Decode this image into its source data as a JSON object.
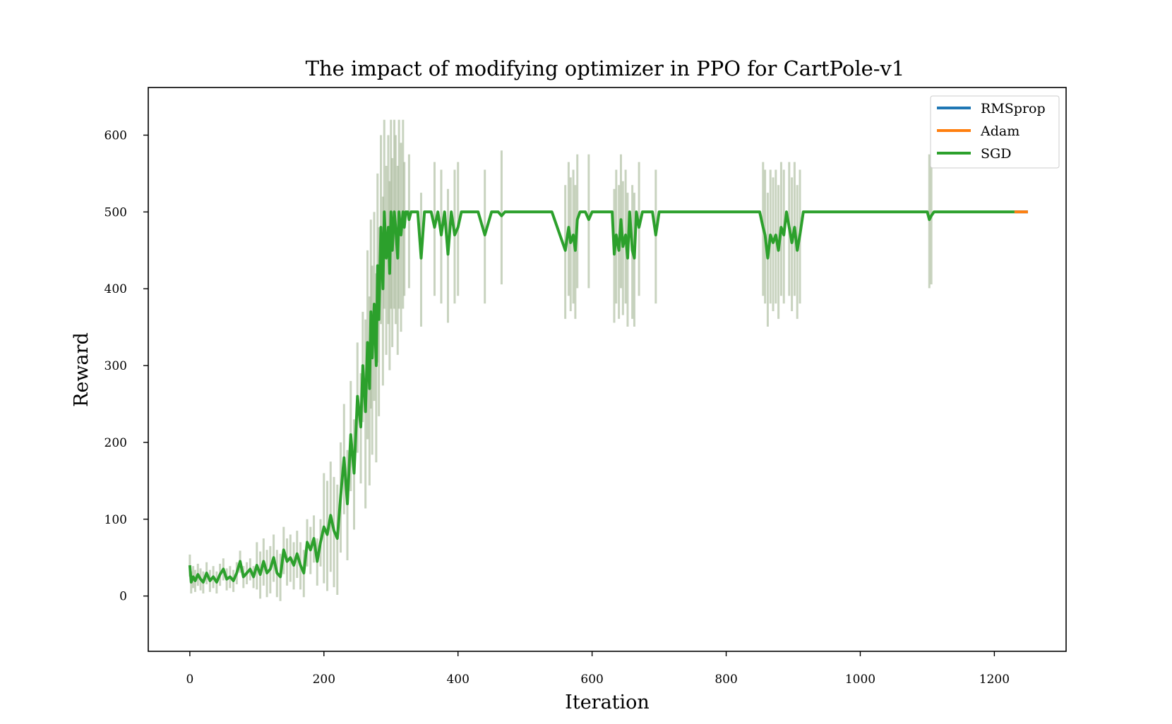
{
  "chart_data": {
    "type": "line",
    "title": "The impact of modifying optimizer in PPO for CartPole-v1",
    "xlabel": "Iteration",
    "ylabel": "Reward",
    "xlim": [
      -62,
      1307
    ],
    "ylim": [
      -72,
      662
    ],
    "xticks": [
      0,
      200,
      400,
      600,
      800,
      1000,
      1200
    ],
    "yticks": [
      0,
      100,
      200,
      300,
      400,
      500,
      600
    ],
    "grid": false,
    "legend_position": "top-right",
    "shaded_band": "standard deviation band around the SGD curve (light grey-green)",
    "series": [
      {
        "name": "RMSprop",
        "color": "#1f77b4",
        "x": [
          1230,
          1250
        ],
        "y": [
          500,
          500
        ]
      },
      {
        "name": "Adam",
        "color": "#ff7f0e",
        "x": [
          1230,
          1250
        ],
        "y": [
          500,
          500
        ]
      },
      {
        "name": "SGD",
        "color": "#2ca02c",
        "x": [
          0,
          2,
          5,
          8,
          12,
          16,
          20,
          25,
          30,
          35,
          40,
          45,
          50,
          55,
          60,
          65,
          70,
          75,
          80,
          85,
          90,
          95,
          100,
          105,
          110,
          115,
          120,
          125,
          130,
          135,
          140,
          145,
          150,
          155,
          160,
          165,
          170,
          175,
          180,
          185,
          190,
          195,
          200,
          205,
          210,
          215,
          220,
          225,
          230,
          235,
          240,
          245,
          250,
          255,
          258,
          262,
          265,
          268,
          270,
          272,
          275,
          278,
          280,
          282,
          285,
          288,
          290,
          293,
          296,
          298,
          300,
          302,
          305,
          307,
          310,
          312,
          315,
          318,
          320,
          322,
          325,
          327,
          330,
          335,
          340,
          345,
          350,
          355,
          360,
          365,
          370,
          375,
          380,
          385,
          390,
          395,
          400,
          405,
          410,
          415,
          420,
          425,
          430,
          440,
          450,
          460,
          465,
          470,
          480,
          500,
          520,
          530,
          535,
          540,
          560,
          565,
          568,
          572,
          575,
          578,
          582,
          585,
          590,
          595,
          600,
          610,
          620,
          625,
          630,
          633,
          636,
          640,
          643,
          646,
          650,
          653,
          656,
          660,
          663,
          666,
          670,
          675,
          680,
          690,
          695,
          700,
          750,
          800,
          850,
          855,
          858,
          862,
          866,
          870,
          874,
          878,
          882,
          886,
          890,
          894,
          898,
          902,
          906,
          910,
          915,
          920,
          950,
          1000,
          1050,
          1100,
          1103,
          1106,
          1110,
          1150,
          1200,
          1230
        ],
        "y": [
          40,
          18,
          25,
          20,
          28,
          22,
          18,
          30,
          20,
          25,
          18,
          28,
          35,
          22,
          25,
          20,
          30,
          45,
          25,
          30,
          35,
          25,
          40,
          28,
          45,
          30,
          35,
          50,
          30,
          25,
          60,
          45,
          50,
          40,
          55,
          40,
          30,
          70,
          60,
          75,
          45,
          70,
          90,
          80,
          105,
          85,
          75,
          130,
          180,
          120,
          210,
          160,
          260,
          220,
          300,
          240,
          330,
          270,
          370,
          310,
          380,
          300,
          430,
          360,
          480,
          400,
          500,
          440,
          480,
          420,
          500,
          450,
          500,
          480,
          440,
          500,
          470,
          500,
          480,
          500,
          500,
          490,
          500,
          500,
          500,
          440,
          500,
          500,
          500,
          480,
          500,
          470,
          500,
          445,
          500,
          470,
          480,
          500,
          500,
          500,
          500,
          500,
          500,
          470,
          500,
          500,
          495,
          500,
          500,
          500,
          500,
          500,
          500,
          500,
          450,
          480,
          460,
          470,
          450,
          490,
          500,
          500,
          500,
          490,
          500,
          500,
          500,
          500,
          500,
          445,
          470,
          450,
          490,
          455,
          470,
          440,
          500,
          450,
          440,
          500,
          480,
          500,
          500,
          500,
          470,
          500,
          500,
          500,
          500,
          480,
          470,
          440,
          470,
          460,
          470,
          450,
          480,
          470,
          500,
          480,
          460,
          480,
          450,
          470,
          500,
          500,
          500,
          500,
          500,
          500,
          490,
          495,
          500,
          500,
          500,
          500
        ]
      }
    ]
  }
}
